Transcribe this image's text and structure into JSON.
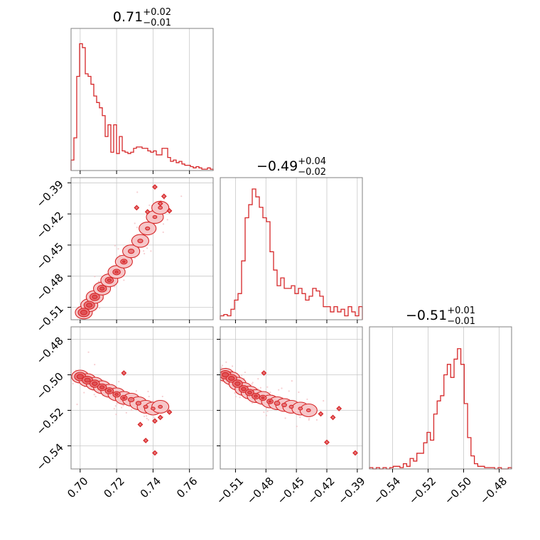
{
  "colors": {
    "series": "#d62728",
    "fill_light": "#f6c6c8",
    "fill_mid": "#e8777b",
    "grid": "#c8c8c8",
    "frame": "#808080"
  },
  "chart_data": {
    "type": "corner",
    "parameters": [
      {
        "id": "p0",
        "title": {
          "median": "0.71",
          "plus": "+0.02",
          "minus": "−0.01"
        },
        "range": [
          0.695,
          0.773
        ],
        "ticks": [
          0.7,
          0.72,
          0.74,
          0.76
        ],
        "tick_labels": [
          "0.70",
          "0.72",
          "0.74",
          "0.76"
        ],
        "hist_counts": [
          0.08,
          0.25,
          0.72,
          0.97,
          0.94,
          0.74,
          0.72,
          0.66,
          0.57,
          0.52,
          0.48,
          0.42,
          0.26,
          0.35,
          0.14,
          0.35,
          0.13,
          0.26,
          0.15,
          0.14,
          0.13,
          0.14,
          0.17,
          0.18,
          0.18,
          0.17,
          0.17,
          0.15,
          0.14,
          0.15,
          0.12,
          0.12,
          0.17,
          0.17,
          0.1,
          0.07,
          0.08,
          0.06,
          0.07,
          0.05,
          0.04,
          0.04,
          0.03,
          0.02,
          0.03,
          0.02,
          0.01,
          0.01,
          0.02,
          0.01
        ]
      },
      {
        "id": "p1",
        "title": {
          "median": "−0.49",
          "plus": "+0.04",
          "minus": "−0.02"
        },
        "range": [
          -0.525,
          -0.385
        ],
        "ticks": [
          -0.51,
          -0.48,
          -0.45,
          -0.42,
          -0.39
        ],
        "tick_labels": [
          "−0.51",
          "−0.48",
          "−0.45",
          "−0.42",
          "−0.39"
        ],
        "hist_counts": [
          0.03,
          0.04,
          0.03,
          0.08,
          0.15,
          0.2,
          0.45,
          0.78,
          0.88,
          1.0,
          0.94,
          0.86,
          0.78,
          0.75,
          0.52,
          0.38,
          0.26,
          0.32,
          0.24,
          0.24,
          0.26,
          0.2,
          0.24,
          0.2,
          0.15,
          0.18,
          0.24,
          0.22,
          0.18,
          0.1,
          0.1,
          0.06,
          0.1,
          0.06,
          0.08,
          0.03,
          0.1,
          0.06,
          0.03,
          0.1
        ]
      },
      {
        "id": "p2",
        "title": {
          "median": "−0.51",
          "plus": "+0.01",
          "minus": "−0.01"
        },
        "range": [
          -0.553,
          -0.473
        ],
        "ticks": [
          -0.54,
          -0.52,
          -0.5,
          -0.48
        ],
        "tick_labels": [
          "−0.54",
          "−0.52",
          "−0.50",
          "−0.48"
        ],
        "hist_counts": [
          0.01,
          0.0,
          0.01,
          0.0,
          0.01,
          0.0,
          0.01,
          0.02,
          0.02,
          0.01,
          0.04,
          0.02,
          0.08,
          0.06,
          0.12,
          0.12,
          0.2,
          0.28,
          0.22,
          0.42,
          0.52,
          0.56,
          0.72,
          0.8,
          0.7,
          0.84,
          0.92,
          0.8,
          0.5,
          0.24,
          0.1,
          0.04,
          0.02,
          0.02,
          0.01,
          0.01,
          0.01,
          0.0,
          0.01,
          0.0,
          0.0,
          0.01
        ]
      }
    ],
    "pairs": [
      {
        "x": "p0",
        "y": "p1",
        "xlim": [
          0.695,
          0.773
        ],
        "ylim": [
          -0.522,
          -0.385
        ],
        "corr": 0.96
      },
      {
        "x": "p0",
        "y": "p2",
        "xlim": [
          0.695,
          0.773
        ],
        "ylim": [
          -0.553,
          -0.473
        ],
        "corr": -0.72
      },
      {
        "x": "p1",
        "y": "p2",
        "xlim": [
          -0.525,
          -0.385
        ],
        "ylim": [
          -0.553,
          -0.473
        ],
        "corr": -0.74
      }
    ]
  }
}
